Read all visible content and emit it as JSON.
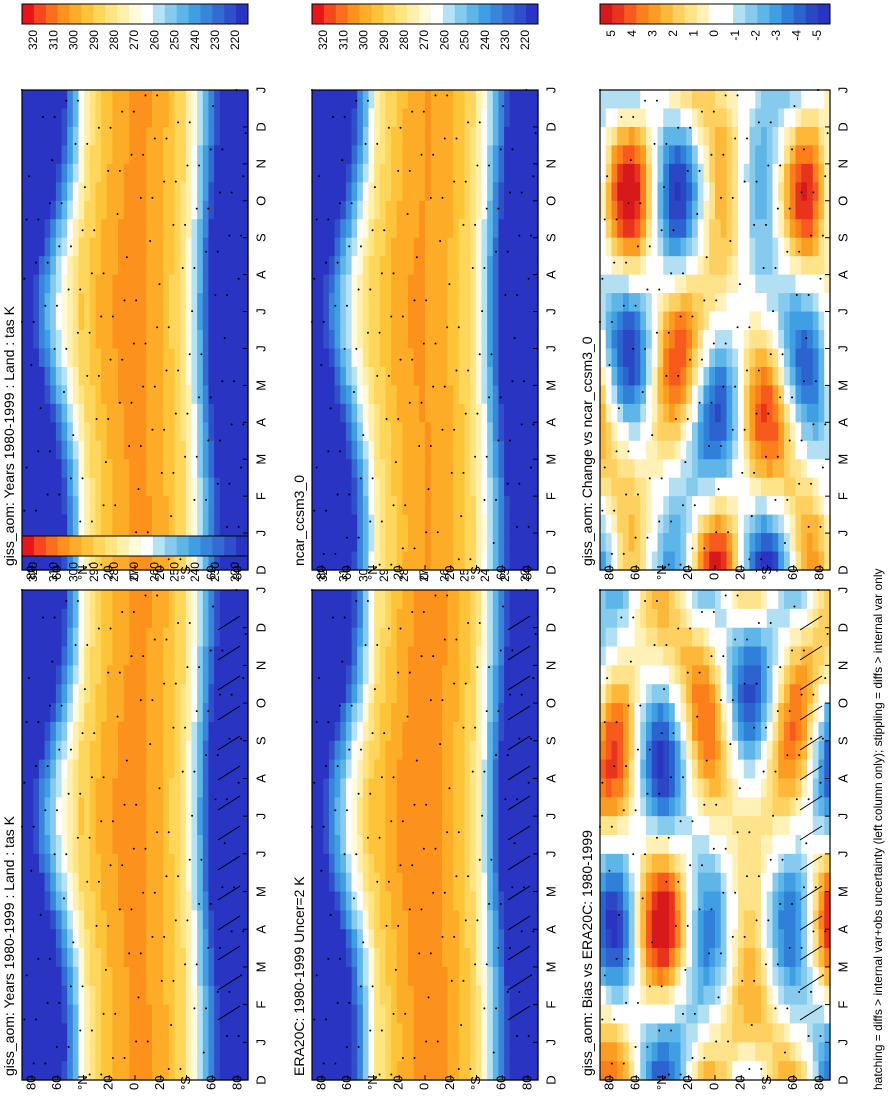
{
  "footnote": "hatching = diffs > internal var+obs uncertainty (left column only); stippling = diffs > internal var only",
  "abs_levels": [
    320,
    310,
    300,
    290,
    280,
    270,
    260,
    250,
    240,
    230,
    220
  ],
  "abs_colors": [
    "#e8141c",
    "#f8461e",
    "#fb6e1d",
    "#fc911c",
    "#fdac28",
    "#fdc43a",
    "#fed65b",
    "#fee582",
    "#fff1ad",
    "#fffadc",
    "#ffffff",
    "#b6e2f5",
    "#86cbee",
    "#5db5e8",
    "#3f9fe2",
    "#3885da",
    "#336bd2",
    "#2f50ca",
    "#2a34c2"
  ],
  "diff_levels": [
    "5",
    "4",
    "3",
    "2",
    "1",
    "0",
    "-1",
    "-2",
    "-3",
    "-4",
    "-5"
  ],
  "diff_colors": [
    "#d7191c",
    "#e8341c",
    "#f85a1d",
    "#fc7f1c",
    "#fc9d22",
    "#fdb83a",
    "#fed060",
    "#fee38a",
    "#fff1b8",
    "#ffffff",
    "#ffffff",
    "#b3dff3",
    "#86cbee",
    "#5db5e8",
    "#3f9fe2",
    "#3080da",
    "#2c63cf",
    "#2a47c4",
    "#2a34c2"
  ],
  "chart_data": [
    {
      "type": "heatmap",
      "title": "giss_aom: Years 1980-1999 : Land : tas K",
      "x_ticks": [
        "D",
        "J",
        "F",
        "M",
        "A",
        "M",
        "J",
        "J",
        "A",
        "S",
        "O",
        "N",
        "D",
        "J"
      ],
      "y_ticks": [
        "80",
        "60",
        "°N",
        "20",
        "0",
        "20",
        "°S",
        "60",
        "80"
      ],
      "value_range": [
        220,
        320
      ],
      "units": "K",
      "colorbar": "abs"
    },
    {
      "type": "heatmap",
      "title": "giss_aom: Years 1980-1999 : Land : tas K",
      "x_ticks": [
        "D",
        "J",
        "F",
        "M",
        "A",
        "M",
        "J",
        "J",
        "A",
        "S",
        "O",
        "N",
        "D",
        "J"
      ],
      "y_ticks": [
        "80",
        "60",
        "°N",
        "20",
        "0",
        "20",
        "°S",
        "60",
        "80"
      ],
      "value_range": [
        220,
        320
      ],
      "units": "K",
      "colorbar": "abs"
    },
    {
      "type": "heatmap",
      "title": "ERA20C: 1980-1999 Uncer=2 K",
      "x_ticks": [
        "D",
        "J",
        "F",
        "M",
        "A",
        "M",
        "J",
        "J",
        "A",
        "S",
        "O",
        "N",
        "D",
        "J"
      ],
      "y_ticks": [
        "80",
        "60",
        "°N",
        "20",
        "0",
        "20",
        "°S",
        "60",
        "80"
      ],
      "value_range": [
        220,
        320
      ],
      "units": "K",
      "colorbar": "abs"
    },
    {
      "type": "heatmap",
      "title": "ncar_ccsm3_0",
      "x_ticks": [
        "D",
        "J",
        "F",
        "M",
        "A",
        "M",
        "J",
        "J",
        "A",
        "S",
        "O",
        "N",
        "D",
        "J"
      ],
      "y_ticks": [
        "80",
        "60",
        "°N",
        "20",
        "0",
        "20",
        "°S",
        "60",
        "80"
      ],
      "value_range": [
        220,
        320
      ],
      "units": "K",
      "colorbar": "abs"
    },
    {
      "type": "heatmap",
      "title": "giss_aom: Bias vs ERA20C: 1980-1999",
      "x_ticks": [
        "D",
        "J",
        "F",
        "M",
        "A",
        "M",
        "J",
        "J",
        "A",
        "S",
        "O",
        "N",
        "D",
        "J"
      ],
      "y_ticks": [
        "80",
        "60",
        "°N",
        "20",
        "0",
        "20",
        "°S",
        "60",
        "80"
      ],
      "value_range": [
        -5,
        5
      ],
      "units": "K",
      "colorbar": "diff"
    },
    {
      "type": "heatmap",
      "title": "giss_aom: Change vs ncar_ccsm3_0",
      "x_ticks": [
        "D",
        "J",
        "F",
        "M",
        "A",
        "M",
        "J",
        "J",
        "A",
        "S",
        "O",
        "N",
        "D",
        "J"
      ],
      "y_ticks": [
        "80",
        "60",
        "°N",
        "20",
        "0",
        "20",
        "°S",
        "60",
        "80"
      ],
      "value_range": [
        -5,
        5
      ],
      "units": "K",
      "colorbar": "diff"
    }
  ]
}
